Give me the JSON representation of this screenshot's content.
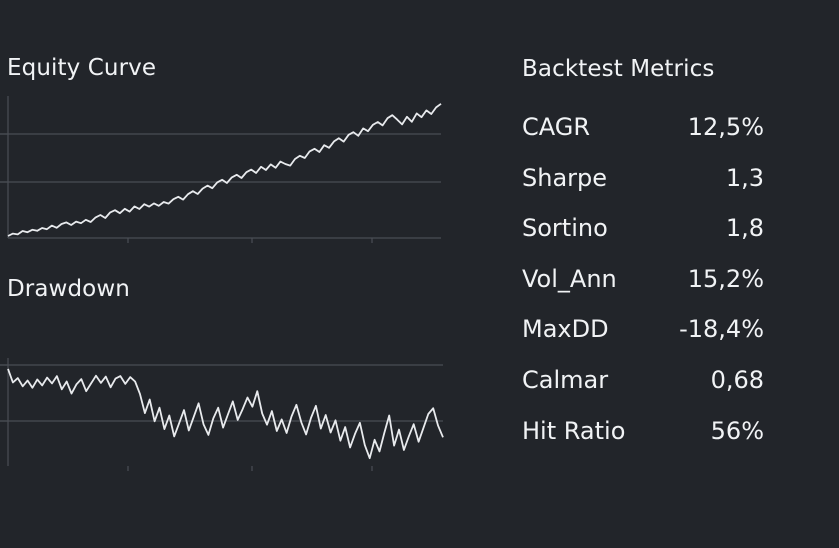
{
  "panels": {
    "equity_title": "Equity Curve",
    "drawdown_title": "Drawdown",
    "metrics_title": "Backtest Metrics"
  },
  "metrics": [
    {
      "label": "CAGR",
      "value": "12,5%"
    },
    {
      "label": "Sharpe",
      "value": "1,3"
    },
    {
      "label": "Sortino",
      "value": "1,8"
    },
    {
      "label": "Vol_Ann",
      "value": "15,2%"
    },
    {
      "label": "MaxDD",
      "value": "-18,4%"
    },
    {
      "label": "Calmar",
      "value": "0,68"
    },
    {
      "label": "Hit Ratio",
      "value": "56%"
    }
  ],
  "colors": {
    "background": "#22252a",
    "line": "#e8eaed",
    "grid": "#4a4e55",
    "text": "#f1f3f5"
  },
  "chart_data": [
    {
      "type": "line",
      "title": "Equity Curve",
      "xlabel": "",
      "ylabel": "",
      "grid": true,
      "x": [
        0,
        1,
        2,
        3,
        4,
        5,
        6,
        7,
        8,
        9,
        10,
        11,
        12,
        13,
        14,
        15,
        16,
        17,
        18,
        19,
        20,
        21,
        22,
        23,
        24,
        25,
        26,
        27,
        28,
        29,
        30,
        31,
        32,
        33,
        34,
        35,
        36,
        37,
        38,
        39,
        40,
        41,
        42,
        43,
        44,
        45,
        46,
        47,
        48,
        49,
        50,
        51,
        52,
        53,
        54,
        55,
        56,
        57,
        58,
        59,
        60,
        61,
        62,
        63,
        64,
        65,
        66,
        67,
        68,
        69,
        70,
        71,
        72,
        73,
        74,
        75,
        76,
        77,
        78,
        79,
        80,
        81,
        82,
        83,
        84,
        85,
        86,
        87,
        88,
        89
      ],
      "values": [
        100,
        101.2,
        100.8,
        102.5,
        101.9,
        103.1,
        102.6,
        104.0,
        103.4,
        105.2,
        104.1,
        106.0,
        106.8,
        105.5,
        107.2,
        106.4,
        108.1,
        107.0,
        109.3,
        110.5,
        109.0,
        111.8,
        112.9,
        111.4,
        113.6,
        112.2,
        114.8,
        113.5,
        115.9,
        114.7,
        116.3,
        115.1,
        117.0,
        116.2,
        118.4,
        119.6,
        118.2,
        120.9,
        122.4,
        121.0,
        123.7,
        125.2,
        123.9,
        126.8,
        128.1,
        126.5,
        129.3,
        130.6,
        129.0,
        131.9,
        133.2,
        131.5,
        134.6,
        133.0,
        135.8,
        134.1,
        137.2,
        136.0,
        135.2,
        138.5,
        140.1,
        139.0,
        142.3,
        143.6,
        142.0,
        145.4,
        144.1,
        147.3,
        148.9,
        147.2,
        150.6,
        151.9,
        150.1,
        153.8,
        152.4,
        155.6,
        157.0,
        155.3,
        158.9,
        160.4,
        158.2,
        155.8,
        159.6,
        157.1,
        161.3,
        159.4,
        162.8,
        161.0,
        164.3,
        166.1
      ],
      "ylim": [
        99,
        169
      ]
    },
    {
      "type": "line",
      "title": "Drawdown",
      "xlabel": "",
      "ylabel": "",
      "grid": true,
      "x": [
        0,
        1,
        2,
        3,
        4,
        5,
        6,
        7,
        8,
        9,
        10,
        11,
        12,
        13,
        14,
        15,
        16,
        17,
        18,
        19,
        20,
        21,
        22,
        23,
        24,
        25,
        26,
        27,
        28,
        29,
        30,
        31,
        32,
        33,
        34,
        35,
        36,
        37,
        38,
        39,
        40,
        41,
        42,
        43,
        44,
        45,
        46,
        47,
        48,
        49,
        50,
        51,
        52,
        53,
        54,
        55,
        56,
        57,
        58,
        59,
        60,
        61,
        62,
        63,
        64,
        65,
        66,
        67,
        68,
        69,
        70,
        71,
        72,
        73,
        74,
        75,
        76,
        77,
        78,
        79,
        80,
        81,
        82,
        83,
        84,
        85,
        86,
        87,
        88,
        89
      ],
      "values": [
        0,
        -2.8,
        -1.9,
        -3.6,
        -2.4,
        -3.9,
        -2.2,
        -3.4,
        -1.8,
        -3.0,
        -1.5,
        -4.2,
        -2.6,
        -5.1,
        -3.2,
        -2.1,
        -4.6,
        -3.0,
        -1.4,
        -2.9,
        -1.6,
        -3.8,
        -2.0,
        -1.5,
        -3.1,
        -1.7,
        -2.6,
        -5.2,
        -9.1,
        -6.3,
        -10.8,
        -8.0,
        -12.4,
        -9.6,
        -13.9,
        -11.2,
        -8.5,
        -12.7,
        -9.9,
        -7.1,
        -11.4,
        -13.6,
        -10.2,
        -8.0,
        -12.1,
        -9.4,
        -6.7,
        -10.5,
        -8.3,
        -5.9,
        -7.8,
        -4.6,
        -9.2,
        -11.5,
        -8.7,
        -12.8,
        -10.4,
        -13.2,
        -9.8,
        -7.4,
        -11.0,
        -13.5,
        -10.1,
        -7.6,
        -12.3,
        -9.5,
        -13.1,
        -10.6,
        -14.8,
        -12.0,
        -16.2,
        -13.4,
        -11.1,
        -15.7,
        -18.4,
        -14.6,
        -17.0,
        -13.2,
        -9.6,
        -15.8,
        -12.5,
        -16.7,
        -13.9,
        -11.4,
        -15.0,
        -12.2,
        -9.3,
        -8.1,
        -11.7,
        -14.1
      ],
      "ylim": [
        -20,
        1
      ]
    }
  ]
}
